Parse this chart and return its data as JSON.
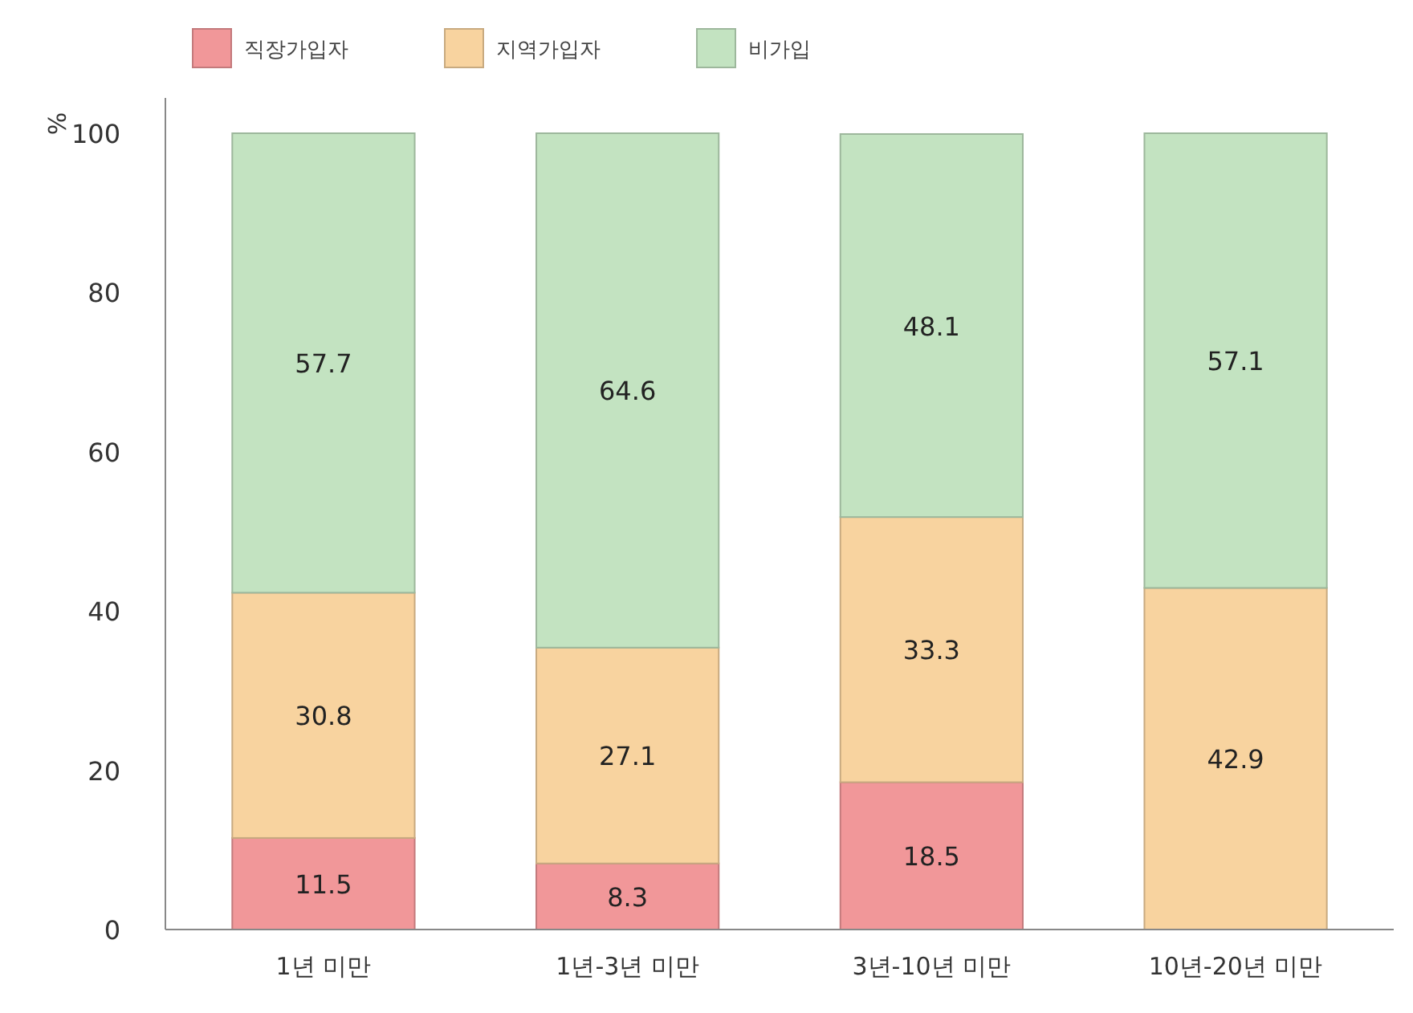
{
  "chart_data": {
    "type": "bar",
    "stacked": true,
    "ylabel": "%",
    "categories": [
      "1년 미만",
      "1년-3년 미만",
      "3년-10년 미만",
      "10년-20년 미만"
    ],
    "series": [
      {
        "name": "직장가입자",
        "color": "#f19799",
        "values": [
          11.5,
          8.3,
          18.5,
          null
        ]
      },
      {
        "name": "지역가입자",
        "color": "#f8d39f",
        "values": [
          30.8,
          27.1,
          33.3,
          42.9
        ]
      },
      {
        "name": "비가입",
        "color": "#c3e3c1",
        "values": [
          57.7,
          64.6,
          48.1,
          57.1
        ]
      }
    ],
    "ylim": [
      0,
      100
    ],
    "yticks": [
      0,
      20,
      40,
      60,
      80,
      100
    ],
    "grid": false,
    "legend": "top left",
    "data_labels": true
  }
}
